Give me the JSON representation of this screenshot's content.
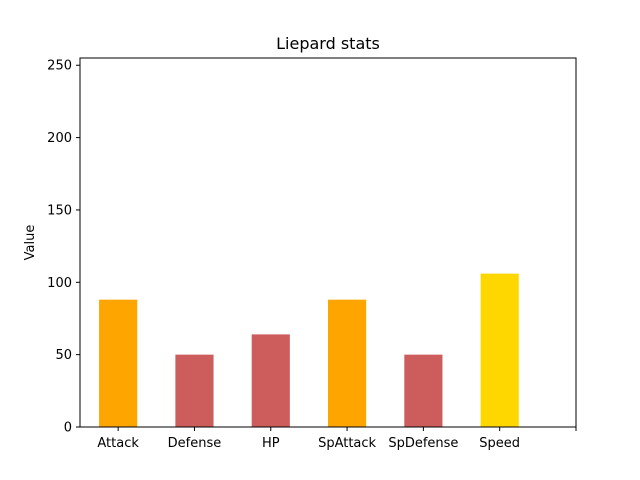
{
  "chart_data": {
    "type": "bar",
    "title": "Liepard stats",
    "xlabel": "",
    "ylabel": "Value",
    "categories": [
      "Attack",
      "Defense",
      "HP",
      "SpAttack",
      "SpDefense",
      "Speed"
    ],
    "values": [
      88,
      50,
      64,
      88,
      50,
      106
    ],
    "bar_colors": [
      "#FFA500",
      "#CD5C5C",
      "#CD5C5C",
      "#FFA500",
      "#CD5C5C",
      "#FFD700"
    ],
    "ylim": [
      0,
      255
    ],
    "yticks": [
      0,
      50,
      100,
      150,
      200,
      250
    ],
    "grid": false,
    "legend": "none"
  }
}
